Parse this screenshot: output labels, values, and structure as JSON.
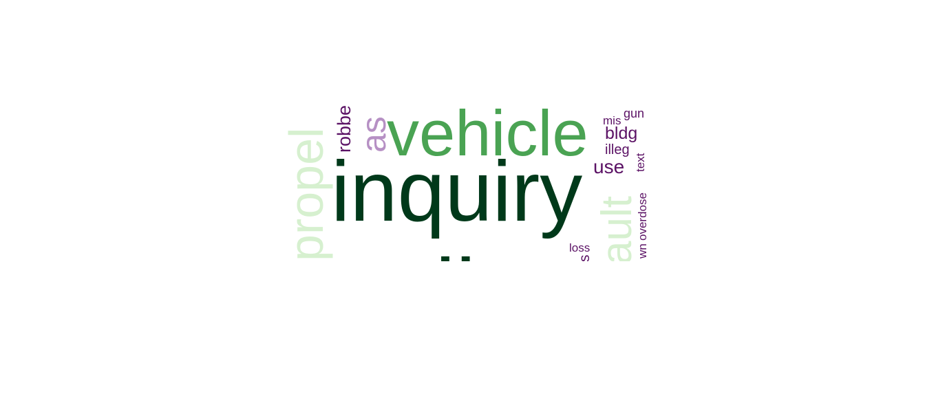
{
  "word_cloud": {
    "colors": {
      "dark_green": "#00391a",
      "mid_green": "#4aa353",
      "light_green": "#d6f0cf",
      "light_purple": "#b690c4",
      "dark_purple": "#5b1265"
    },
    "words": [
      {
        "key": "inquiry",
        "text": "inquiry",
        "color": "dark_green"
      },
      {
        "key": "police",
        "text": "police",
        "color": "dark_green"
      },
      {
        "key": "vehicle",
        "text": "vehicle",
        "color": "mid_green"
      },
      {
        "key": "property",
        "text": "propel",
        "color": "light_green"
      },
      {
        "key": "assault",
        "text": "ault",
        "color": "light_green"
      },
      {
        "key": "as",
        "text": "as",
        "color": "light_purple"
      },
      {
        "key": "robbery",
        "text": "robbe",
        "color": "dark_purple"
      },
      {
        "key": "mis",
        "text": "mis",
        "color": "dark_purple"
      },
      {
        "key": "gun",
        "text": "gun",
        "color": "dark_purple"
      },
      {
        "key": "bldg",
        "text": "bldg",
        "color": "dark_purple"
      },
      {
        "key": "illeg",
        "text": "illeg",
        "color": "dark_purple"
      },
      {
        "key": "use",
        "text": "use",
        "color": "dark_purple"
      },
      {
        "key": "text",
        "text": "text",
        "color": "dark_purple"
      },
      {
        "key": "overdose",
        "text": "overdose",
        "color": "dark_purple"
      },
      {
        "key": "wn",
        "text": "wn",
        "color": "dark_purple"
      },
      {
        "key": "loss",
        "text": "loss",
        "color": "dark_purple"
      },
      {
        "key": "s",
        "text": "s",
        "color": "dark_purple"
      }
    ]
  }
}
